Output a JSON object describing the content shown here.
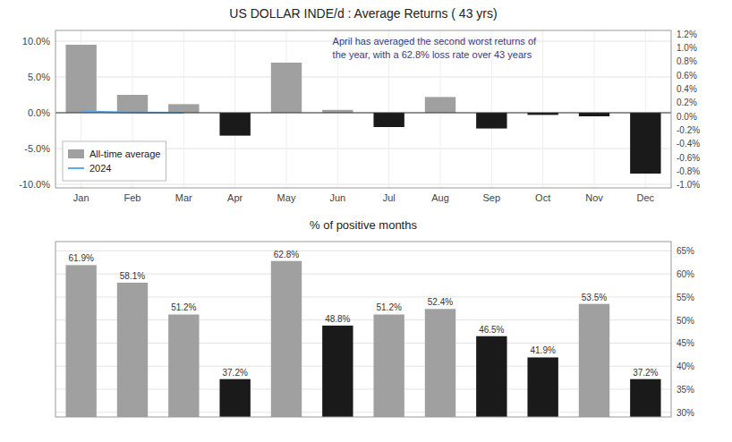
{
  "chart_data": [
    {
      "type": "bar",
      "title": "US DOLLAR INDE/d : Average Returns ( 43 yrs)",
      "categories": [
        "Jan",
        "Feb",
        "Mar",
        "Apr",
        "May",
        "Jun",
        "Jul",
        "Aug",
        "Sep",
        "Oct",
        "Nov",
        "Dec"
      ],
      "series": [
        {
          "name": "All-time average",
          "values": [
            9.5,
            2.5,
            1.2,
            -3.2,
            7.0,
            0.4,
            -2.0,
            2.2,
            -2.2,
            -0.3,
            -0.5,
            -8.5
          ],
          "colors": [
            "#a0a0a0",
            "#a0a0a0",
            "#a0a0a0",
            "#1a1a1a",
            "#a0a0a0",
            "#a0a0a0",
            "#1a1a1a",
            "#a0a0a0",
            "#1a1a1a",
            "#1a1a1a",
            "#1a1a1a",
            "#1a1a1a"
          ]
        },
        {
          "name": "2024",
          "type": "line",
          "color": "#5aaaee",
          "values": [
            0.18,
            0.04,
            0.01,
            null,
            null,
            null,
            null,
            null,
            null,
            null,
            null,
            null
          ]
        }
      ],
      "ylim": [
        -10.5,
        11.5
      ],
      "yticks": [
        {
          "value": -10.0,
          "label": "-10.0%"
        },
        {
          "value": -5.0,
          "label": "-5.0%"
        },
        {
          "value": 0.0,
          "label": "0.0%"
        },
        {
          "value": 5.0,
          "label": "5.0%"
        },
        {
          "value": 10.0,
          "label": "10.0%"
        }
      ],
      "y2lim": [
        -1.05,
        1.25
      ],
      "y2ticks": [
        {
          "value": -1.0,
          "label": "-1.0%"
        },
        {
          "value": -0.8,
          "label": "-0.8%"
        },
        {
          "value": -0.6,
          "label": "-0.6%"
        },
        {
          "value": -0.4,
          "label": "-0.4%"
        },
        {
          "value": -0.2,
          "label": "-0.2%"
        },
        {
          "value": 0.0,
          "label": "0.0%"
        },
        {
          "value": 0.2,
          "label": "0.2%"
        },
        {
          "value": 0.4,
          "label": "0.4%"
        },
        {
          "value": 0.6,
          "label": "0.6%"
        },
        {
          "value": 0.8,
          "label": "0.8%"
        },
        {
          "value": 1.0,
          "label": "1.0%"
        },
        {
          "value": 1.2,
          "label": "1.2%"
        }
      ],
      "grid": true,
      "legend": "lower left",
      "annotations": [
        "April has averaged the second worst returns of\nthe year, with a 62.8% loss rate over 43 years"
      ]
    },
    {
      "type": "bar",
      "title": "% of positive months",
      "categories": [
        null,
        null,
        null,
        null,
        null,
        null,
        null,
        null,
        null,
        null,
        null,
        null
      ],
      "series": [
        {
          "axis": "y2",
          "values": [
            61.9,
            58.1,
            51.2,
            37.2,
            62.8,
            48.8,
            51.2,
            52.4,
            46.5,
            41.9,
            53.5,
            37.2
          ],
          "value_labels": [
            "61.9%",
            "58.1%",
            "51.2%",
            "37.2%",
            "62.8%",
            "48.8%",
            "51.2%",
            "52.4%",
            "46.5%",
            "41.9%",
            "53.5%",
            "37.2%"
          ],
          "colors": [
            "#a0a0a0",
            "#a0a0a0",
            "#a0a0a0",
            "#1a1a1a",
            "#a0a0a0",
            "#1a1a1a",
            "#a0a0a0",
            "#a0a0a0",
            "#1a1a1a",
            "#1a1a1a",
            "#a0a0a0",
            "#1a1a1a"
          ]
        }
      ],
      "y2lim": [
        29,
        67
      ],
      "y2ticks": [
        {
          "value": 30,
          "label": "30%"
        },
        {
          "value": 35,
          "label": "35%"
        },
        {
          "value": 40,
          "label": "40%"
        },
        {
          "value": 45,
          "label": "45%"
        },
        {
          "value": 50,
          "label": "50%"
        },
        {
          "value": 55,
          "label": "55%"
        },
        {
          "value": 60,
          "label": "60%"
        },
        {
          "value": 65,
          "label": "65%"
        }
      ],
      "grid": true,
      "data_labels": true,
      "tick_labels": "y"
    }
  ]
}
